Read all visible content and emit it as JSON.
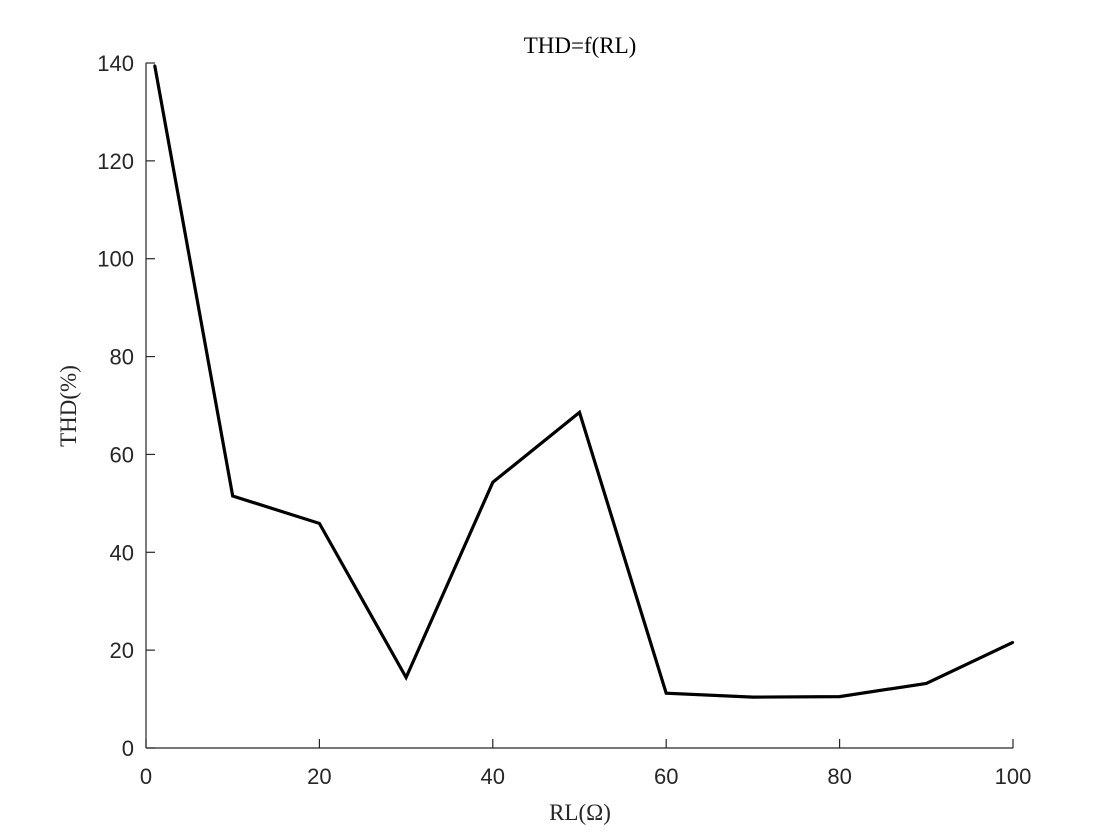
{
  "chart_data": {
    "type": "line",
    "title": "THD=f(RL)",
    "xlabel": "RL(Ω)",
    "ylabel": "THD(%)",
    "xlim": [
      0,
      100
    ],
    "ylim": [
      0,
      140
    ],
    "x_ticks": [
      "0",
      "20",
      "40",
      "60",
      "80",
      "100"
    ],
    "y_ticks": [
      "0",
      "20",
      "40",
      "60",
      "80",
      "100",
      "120",
      "140"
    ],
    "grid": false,
    "legend": "none",
    "series": [
      {
        "color": "#000000",
        "x": [
          1,
          10,
          20,
          30,
          40,
          50,
          60,
          70,
          80,
          90,
          100
        ],
        "y": [
          139.5,
          51.5,
          45.9,
          14.4,
          54.3,
          68.6,
          11.2,
          10.4,
          10.5,
          13.2,
          21.6
        ]
      }
    ]
  }
}
